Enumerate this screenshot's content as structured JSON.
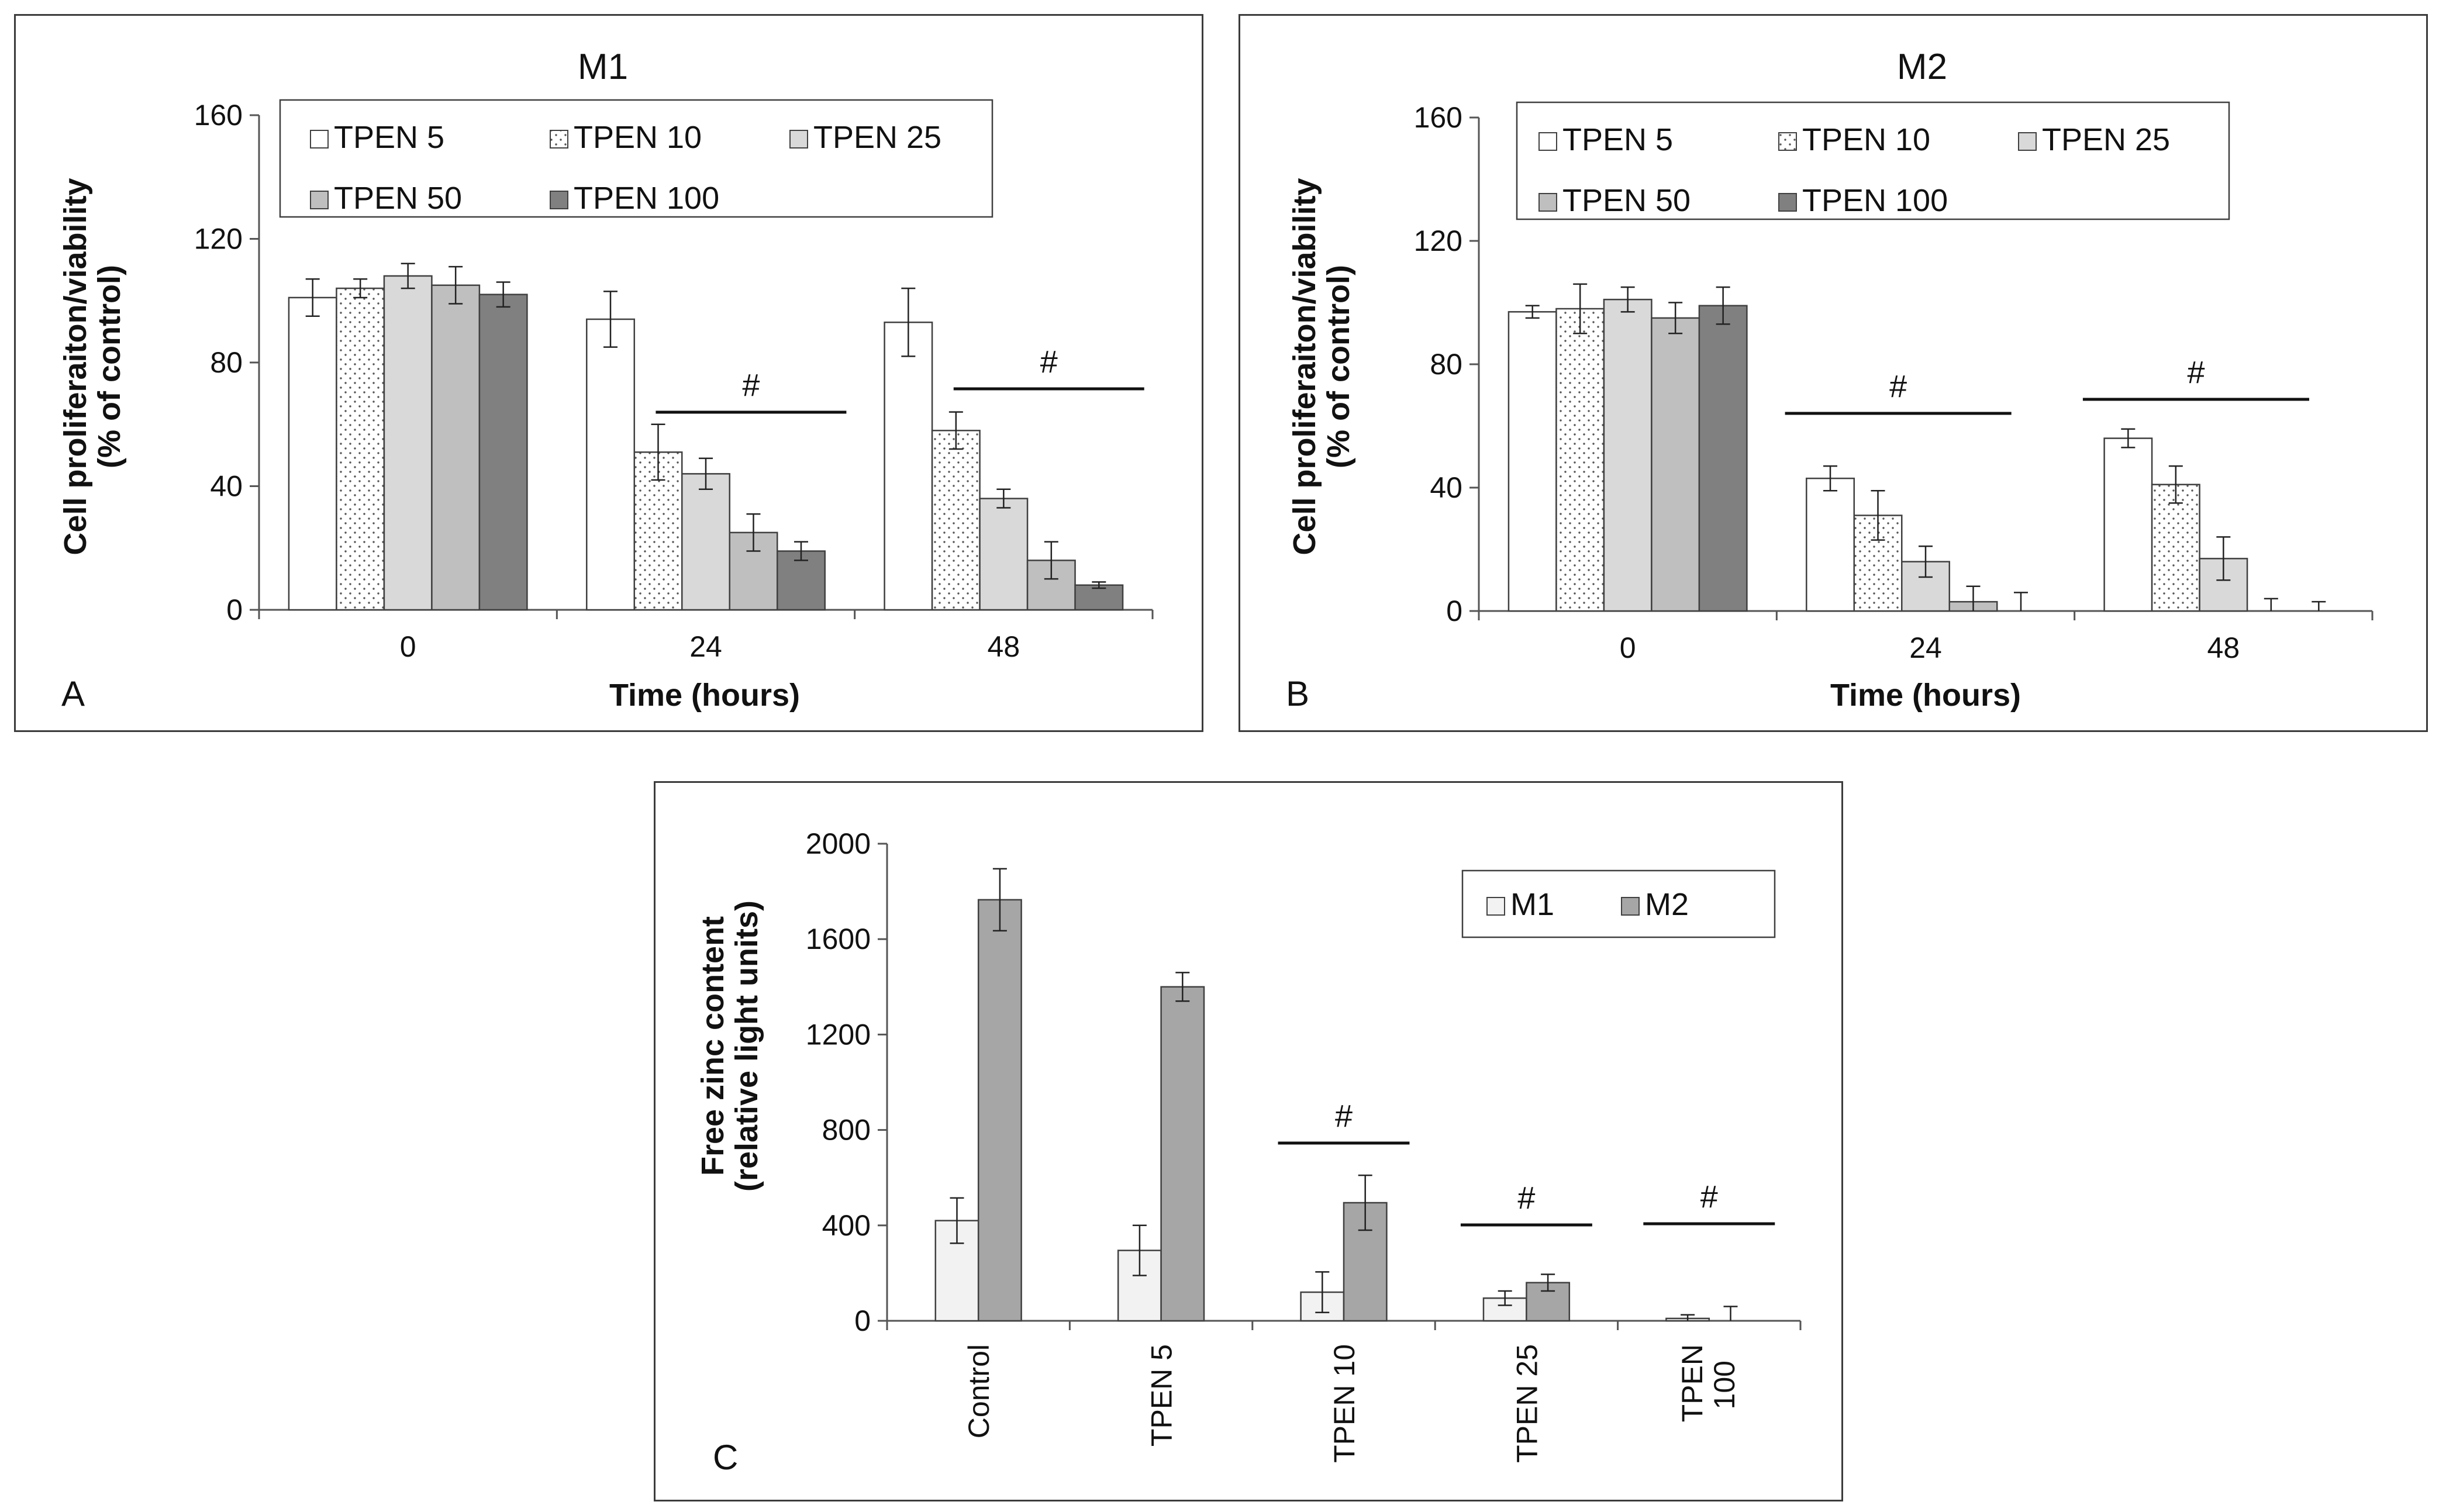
{
  "chart_data": [
    {
      "type": "bar",
      "panel": "A",
      "title": "M1",
      "xlabel": "Time (hours)",
      "ylabel": [
        "Cell proliferaiton/viability",
        "(% of control)"
      ],
      "ylim": [
        0,
        160
      ],
      "yticks": [
        0,
        40,
        80,
        120,
        160
      ],
      "categories": [
        "0",
        "24",
        "48"
      ],
      "series": [
        {
          "name": "TPEN 5",
          "values": [
            101,
            94,
            93
          ],
          "errors": [
            6,
            9,
            11
          ],
          "fill": "#ffffff",
          "pattern": "none"
        },
        {
          "name": "TPEN 10",
          "values": [
            104,
            51,
            58
          ],
          "errors": [
            3,
            9,
            6
          ],
          "fill": "#ffffff",
          "pattern": "dots"
        },
        {
          "name": "TPEN 25",
          "values": [
            108,
            44,
            36
          ],
          "errors": [
            4,
            5,
            3
          ],
          "fill": "#d9d9d9",
          "pattern": "none"
        },
        {
          "name": "TPEN 50",
          "values": [
            105,
            25,
            16
          ],
          "errors": [
            6,
            6,
            6
          ],
          "fill": "#bfbfbf",
          "pattern": "none"
        },
        {
          "name": "TPEN 100",
          "values": [
            102,
            19,
            8
          ],
          "errors": [
            4,
            3,
            1
          ],
          "fill": "#808080",
          "pattern": "none"
        }
      ],
      "significance": [
        {
          "category": "24",
          "from_series": 1,
          "to_series": 4,
          "label": "#"
        },
        {
          "category": "48",
          "from_series": 1,
          "to_series": 4,
          "label": "#"
        }
      ],
      "legend": "top",
      "legend_columns": 3
    },
    {
      "type": "bar",
      "panel": "B",
      "title": "M2",
      "xlabel": "Time (hours)",
      "ylabel": [
        "Cell proliferaiton/viability",
        "(% of control)"
      ],
      "ylim": [
        0,
        160
      ],
      "yticks": [
        0,
        40,
        80,
        120,
        160
      ],
      "categories": [
        "0",
        "24",
        "48"
      ],
      "series": [
        {
          "name": "TPEN 5",
          "values": [
            97,
            43,
            56
          ],
          "errors": [
            2,
            4,
            3
          ],
          "fill": "#ffffff",
          "pattern": "none"
        },
        {
          "name": "TPEN 10",
          "values": [
            98,
            31,
            41
          ],
          "errors": [
            8,
            8,
            6
          ],
          "fill": "#ffffff",
          "pattern": "dots"
        },
        {
          "name": "TPEN 25",
          "values": [
            101,
            16,
            17
          ],
          "errors": [
            4,
            5,
            7
          ],
          "fill": "#d9d9d9",
          "pattern": "none"
        },
        {
          "name": "TPEN 50",
          "values": [
            95,
            3,
            0
          ],
          "errors": [
            5,
            5,
            4
          ],
          "fill": "#bfbfbf",
          "pattern": "none"
        },
        {
          "name": "TPEN 100",
          "values": [
            99,
            0,
            0
          ],
          "errors": [
            6,
            6,
            3
          ],
          "fill": "#808080",
          "pattern": "none"
        }
      ],
      "significance": [
        {
          "category": "24",
          "from_series": 0,
          "to_series": 4,
          "label": "#"
        },
        {
          "category": "48",
          "from_series": 0,
          "to_series": 4,
          "label": "#"
        }
      ],
      "legend": "top",
      "legend_columns": 3
    },
    {
      "type": "bar",
      "panel": "C",
      "title": "",
      "xlabel": "",
      "ylabel": [
        "Free zinc content",
        "(relative light units)"
      ],
      "ylim": [
        0,
        2000
      ],
      "yticks": [
        0,
        400,
        800,
        1200,
        1600,
        2000
      ],
      "categories": [
        "Control",
        "TPEN 5",
        "TPEN 10",
        "TPEN 25",
        "TPEN 100"
      ],
      "series": [
        {
          "name": "M1",
          "values": [
            420,
            295,
            120,
            95,
            10
          ],
          "errors": [
            95,
            105,
            85,
            30,
            15
          ],
          "fill": "#f2f2f2",
          "pattern": "none"
        },
        {
          "name": "M2",
          "values": [
            1765,
            1400,
            495,
            160,
            0
          ],
          "errors": [
            130,
            60,
            115,
            35,
            60
          ],
          "fill": "#a6a6a6",
          "pattern": "none"
        }
      ],
      "significance": [
        {
          "category": "TPEN 10",
          "label": "#"
        },
        {
          "category": "TPEN 25",
          "label": "#"
        },
        {
          "category": "TPEN 100",
          "label": "#"
        }
      ],
      "legend": "top-right",
      "legend_columns": 2
    }
  ]
}
